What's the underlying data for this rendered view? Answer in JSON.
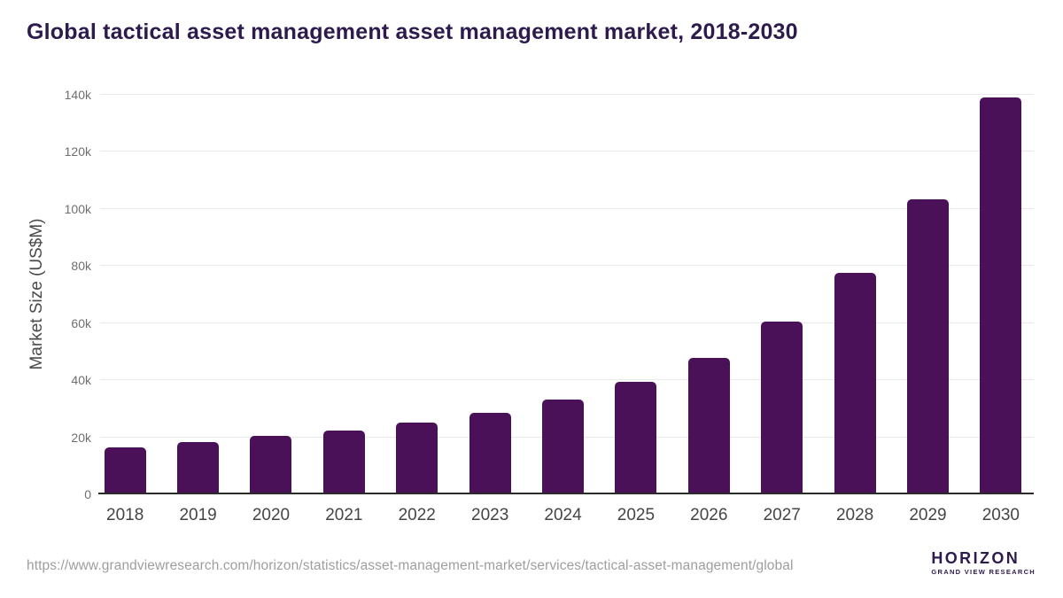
{
  "header": {
    "title": "Global tactical asset management asset management market, 2018-2030"
  },
  "chart": {
    "ylabel": "Market Size (US$M)"
  },
  "chart_data": {
    "type": "bar",
    "title": "Global tactical asset management asset management market, 2018-2030",
    "xlabel": "",
    "ylabel": "Market Size (US$M)",
    "categories": [
      "2018",
      "2019",
      "2020",
      "2021",
      "2022",
      "2023",
      "2024",
      "2025",
      "2026",
      "2027",
      "2028",
      "2029",
      "2030"
    ],
    "values": [
      16500,
      18400,
      20400,
      22500,
      25100,
      28700,
      33100,
      39300,
      47800,
      60400,
      77700,
      103500,
      139000
    ],
    "unit": "US$M",
    "ylim": [
      0,
      140000
    ],
    "ytick_values": [
      0,
      20000,
      40000,
      60000,
      80000,
      100000,
      120000,
      140000
    ],
    "ytick_labels": [
      "0",
      "20k",
      "40k",
      "60k",
      "80k",
      "100k",
      "120k",
      "140k"
    ],
    "grid": true,
    "legend": false,
    "bar_color": "#4a1158"
  },
  "footer": {
    "source_url": "https://www.grandviewresearch.com/horizon/statistics/asset-management-market/services/tactical-asset-management/global",
    "logo": {
      "title": "HORIZON",
      "subtitle": "GRAND VIEW RESEARCH"
    }
  },
  "colors": {
    "bar": "#4a1158",
    "title_text": "#2d1b4e",
    "ytick_text": "#6f6f6f",
    "xtick_text": "#454545",
    "gridline": "#e9e9e9",
    "axis_line": "#2b2b2b",
    "url_text": "#9e9e9e",
    "logo_purple": "#2d1b4e",
    "logo_blue": "#58c3ef"
  }
}
